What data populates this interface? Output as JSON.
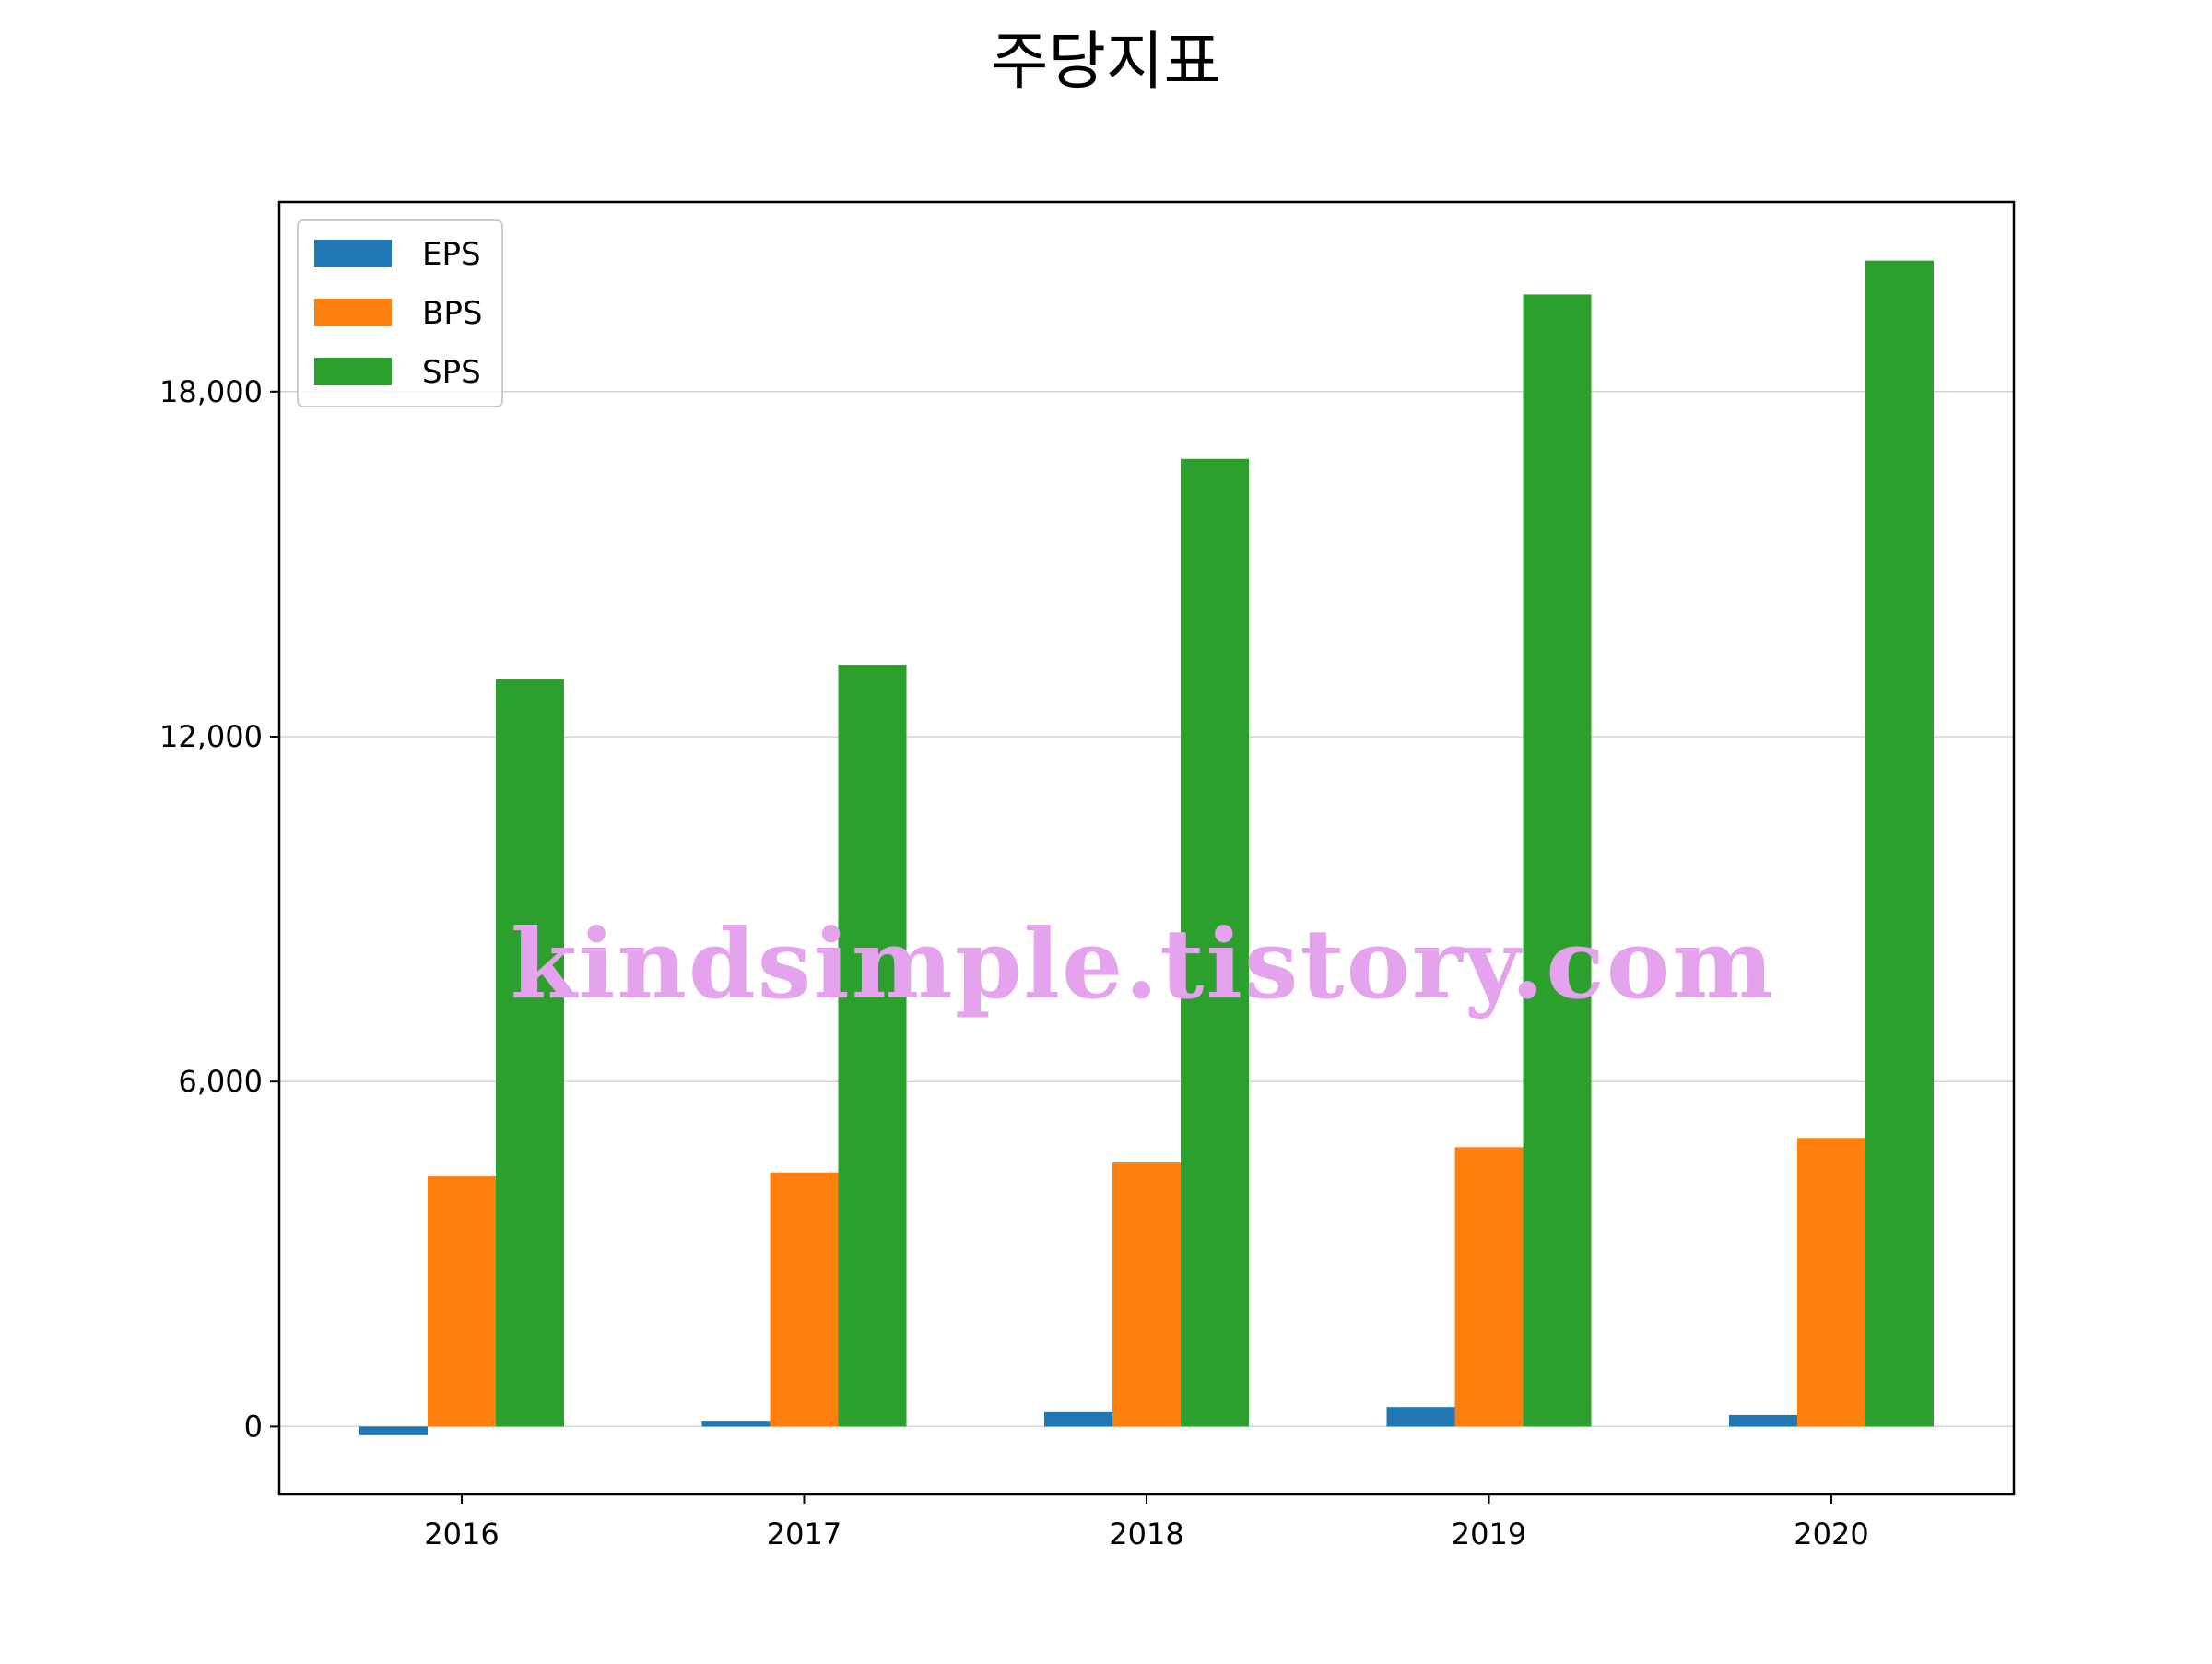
{
  "chart_data": {
    "type": "bar",
    "title": "주당지표",
    "xlabel": "",
    "ylabel": "",
    "categories": [
      "2016",
      "2017",
      "2018",
      "2019",
      "2020"
    ],
    "series": [
      {
        "name": "EPS",
        "color": "#1f77b4",
        "values": [
          -150,
          100,
          250,
          340,
          200
        ]
      },
      {
        "name": "BPS",
        "color": "#ff7f0e",
        "values": [
          4350,
          4420,
          4590,
          4860,
          5020
        ]
      },
      {
        "name": "SPS",
        "color": "#2ca02c",
        "values": [
          13000,
          13250,
          16830,
          19690,
          20280
        ]
      }
    ],
    "ylim": [
      -1180,
      21300
    ],
    "yticks": [
      0,
      6000,
      12000,
      18000
    ],
    "ytick_labels": [
      "0",
      "6,000",
      "12,000",
      "18,000"
    ],
    "grid": "horizontal",
    "legend_position": "upper-left"
  },
  "watermark": "kindsimple.tistory.com"
}
